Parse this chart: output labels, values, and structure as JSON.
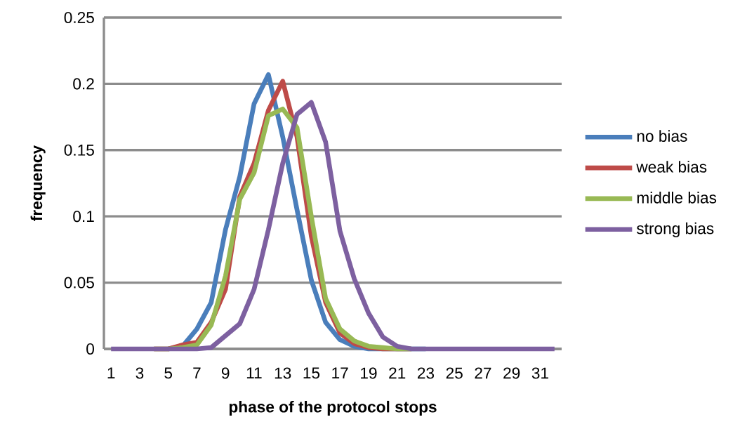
{
  "chart_data": {
    "type": "line",
    "xlabel": "phase of the protocol stops",
    "ylabel": "frequency",
    "categories": [
      "1",
      null,
      "3",
      null,
      "5",
      null,
      "7",
      null,
      "9",
      null,
      "11",
      null,
      "13",
      null,
      "15",
      null,
      "17",
      null,
      "19",
      null,
      "21",
      null,
      "23",
      null,
      "25",
      null,
      "27",
      null,
      "29",
      null,
      "31",
      null
    ],
    "series": [
      {
        "name": "no bias",
        "color": "#4a7ebb",
        "values": [
          null,
          null,
          null,
          null,
          0,
          0.002,
          0.015,
          0.035,
          0.09,
          0.13,
          0.185,
          0.207,
          0.16,
          0.105,
          0.052,
          0.02,
          0.007,
          0.002,
          0,
          0,
          0,
          0,
          0,
          null,
          null,
          null,
          null,
          null,
          null,
          null,
          null,
          null
        ]
      },
      {
        "name": "weak bias",
        "color": "#be4b48",
        "values": [
          null,
          null,
          null,
          0,
          0,
          0.003,
          0.005,
          0.02,
          0.045,
          0.115,
          0.14,
          0.18,
          0.202,
          0.16,
          0.085,
          0.035,
          0.012,
          0.004,
          0.001,
          0,
          0,
          0,
          null,
          null,
          null,
          null,
          null,
          null,
          null,
          null,
          null,
          null
        ]
      },
      {
        "name": "middle bias",
        "color": "#98b954",
        "values": [
          null,
          null,
          null,
          0,
          0,
          0.001,
          0.003,
          0.018,
          0.055,
          0.113,
          0.133,
          0.176,
          0.181,
          0.167,
          0.1,
          0.038,
          0.015,
          0.006,
          0.002,
          0.001,
          0,
          0,
          null,
          null,
          null,
          null,
          null,
          null,
          null,
          null,
          null,
          null
        ]
      },
      {
        "name": "strong bias",
        "color": "#7d60a0",
        "values": [
          0,
          0,
          0,
          0,
          0,
          0,
          0,
          0.001,
          0.01,
          0.019,
          0.045,
          0.09,
          0.14,
          0.177,
          0.186,
          0.156,
          0.089,
          0.053,
          0.027,
          0.009,
          0.002,
          0,
          0,
          0,
          0,
          0,
          0,
          0,
          0,
          0,
          0,
          0
        ]
      }
    ],
    "ylim": [
      0,
      0.25
    ],
    "yticks": [
      0,
      0.05,
      0.1,
      0.15,
      0.2,
      0.25
    ],
    "grid": "y",
    "legend": "right",
    "marker": "none",
    "line_style": "solid"
  }
}
